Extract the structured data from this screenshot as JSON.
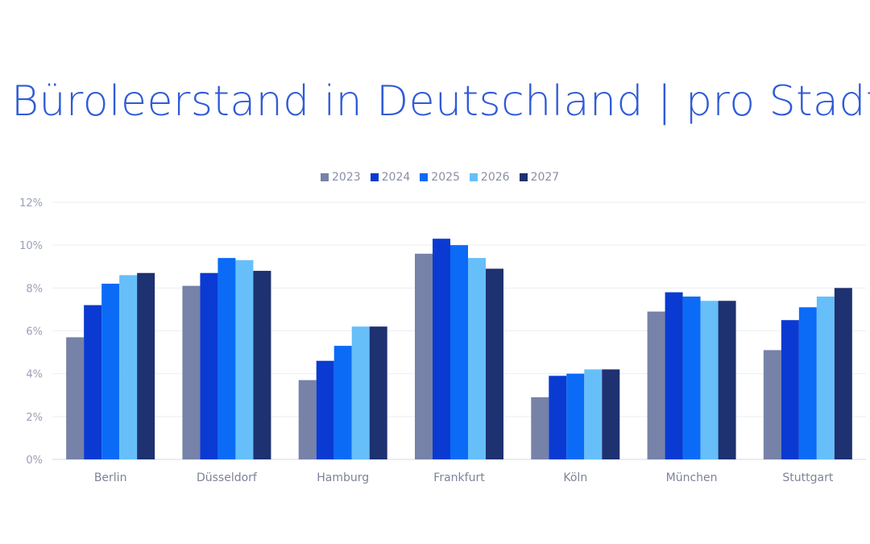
{
  "title": "Büroleerstand in Deutschland | pro Stadt",
  "chart_data": {
    "type": "bar",
    "title": "Büroleerstand in Deutschland | pro Stadt",
    "xlabel": "",
    "ylabel": "",
    "ylim": [
      0,
      12
    ],
    "yticks": [
      0,
      2,
      4,
      6,
      8,
      10,
      12
    ],
    "ytick_labels": [
      "0%",
      "2%",
      "4%",
      "6%",
      "8%",
      "10%",
      "12%"
    ],
    "categories": [
      "Berlin",
      "Düsseldorf",
      "Hamburg",
      "Frankfurt",
      "Köln",
      "München",
      "Stuttgart"
    ],
    "legend_position": "top-center",
    "grid": true,
    "series": [
      {
        "name": "2023",
        "color": "#7782a8",
        "values": [
          5.7,
          8.1,
          3.7,
          9.6,
          2.9,
          6.9,
          5.1
        ]
      },
      {
        "name": "2024",
        "color": "#0a3ad1",
        "values": [
          7.2,
          8.7,
          4.6,
          10.3,
          3.9,
          7.8,
          6.5
        ]
      },
      {
        "name": "2025",
        "color": "#0b6bf6",
        "values": [
          8.2,
          9.4,
          5.3,
          10.0,
          4.0,
          7.6,
          7.1
        ]
      },
      {
        "name": "2026",
        "color": "#66bff9",
        "values": [
          8.6,
          9.3,
          6.2,
          9.4,
          4.2,
          7.4,
          7.6
        ]
      },
      {
        "name": "2027",
        "color": "#1e3170",
        "values": [
          8.7,
          8.8,
          6.2,
          8.9,
          4.2,
          7.4,
          8.0
        ]
      }
    ]
  }
}
